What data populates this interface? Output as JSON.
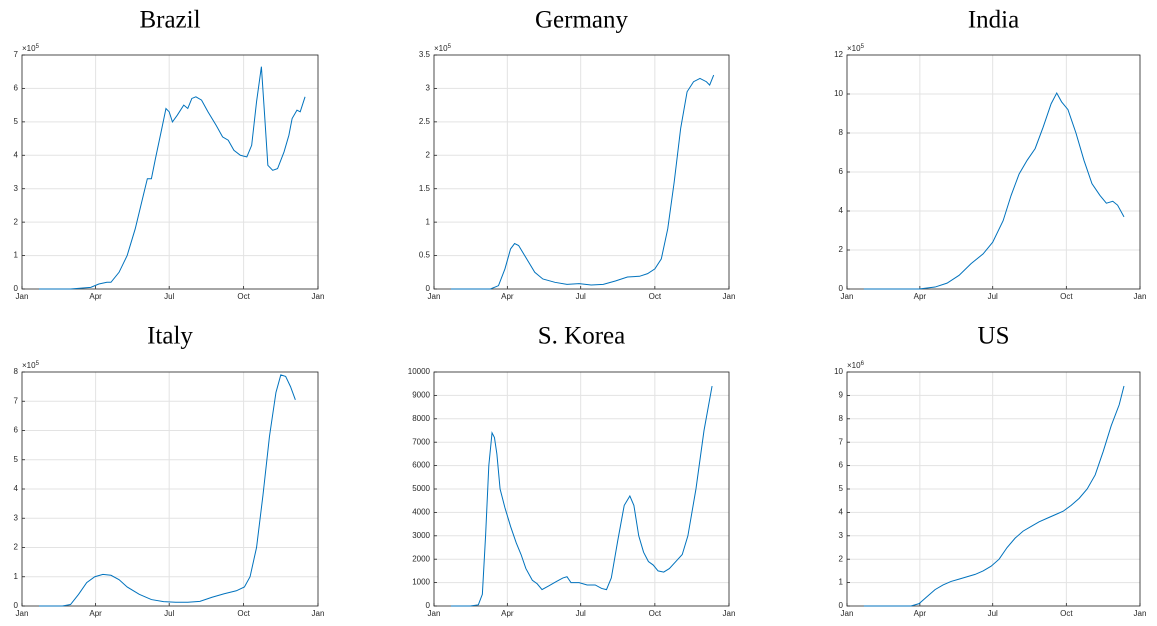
{
  "chart_data": [
    {
      "type": "line",
      "title": "Brazil",
      "color": "#0072bd",
      "grid": true,
      "y_multiplier": {
        "base": "×10",
        "exponent": "5"
      },
      "xlim": [
        0,
        366
      ],
      "xticks": [
        {
          "value": 0,
          "label": "Jan"
        },
        {
          "value": 91,
          "label": "Apr"
        },
        {
          "value": 182,
          "label": "Jul"
        },
        {
          "value": 274,
          "label": "Oct"
        },
        {
          "value": 366,
          "label": "Jan"
        }
      ],
      "ylim": [
        0,
        7
      ],
      "yticks": [
        0,
        1,
        2,
        3,
        4,
        5,
        6,
        7
      ],
      "x": [
        21,
        60,
        85,
        95,
        105,
        110,
        120,
        130,
        140,
        150,
        155,
        160,
        165,
        172,
        178,
        182,
        186,
        192,
        200,
        205,
        210,
        215,
        222,
        230,
        240,
        248,
        255,
        262,
        270,
        278,
        284,
        290,
        296,
        300,
        304,
        310,
        316,
        324,
        330,
        334,
        340,
        344,
        350
      ],
      "values": [
        0,
        0,
        0.05,
        0.15,
        0.2,
        0.2,
        0.5,
        1.0,
        1.8,
        2.8,
        3.3,
        3.3,
        3.9,
        4.7,
        5.4,
        5.3,
        5.0,
        5.2,
        5.5,
        5.4,
        5.7,
        5.75,
        5.65,
        5.3,
        4.9,
        4.55,
        4.45,
        4.15,
        4.0,
        3.95,
        4.3,
        5.6,
        6.65,
        5.2,
        3.7,
        3.55,
        3.6,
        4.1,
        4.6,
        5.1,
        5.35,
        5.3,
        5.75
      ]
    },
    {
      "type": "line",
      "title": "Germany",
      "color": "#0072bd",
      "grid": true,
      "y_multiplier": {
        "base": "×10",
        "exponent": "5"
      },
      "xlim": [
        0,
        366
      ],
      "xticks": [
        {
          "value": 0,
          "label": "Jan"
        },
        {
          "value": 91,
          "label": "Apr"
        },
        {
          "value": 182,
          "label": "Jul"
        },
        {
          "value": 274,
          "label": "Oct"
        },
        {
          "value": 366,
          "label": "Jan"
        }
      ],
      "ylim": [
        0,
        3.5
      ],
      "yticks": [
        0,
        0.5,
        1,
        1.5,
        2,
        2.5,
        3,
        3.5
      ],
      "x": [
        21,
        70,
        80,
        88,
        95,
        100,
        105,
        115,
        125,
        135,
        150,
        165,
        180,
        195,
        210,
        225,
        240,
        255,
        265,
        274,
        282,
        290,
        298,
        306,
        314,
        322,
        330,
        338,
        342,
        347
      ],
      "values": [
        0,
        0,
        0.05,
        0.3,
        0.6,
        0.68,
        0.65,
        0.45,
        0.25,
        0.15,
        0.1,
        0.07,
        0.08,
        0.06,
        0.07,
        0.12,
        0.18,
        0.19,
        0.23,
        0.3,
        0.45,
        0.9,
        1.6,
        2.4,
        2.95,
        3.1,
        3.15,
        3.1,
        3.05,
        3.2
      ]
    },
    {
      "type": "line",
      "title": "India",
      "color": "#0072bd",
      "grid": true,
      "y_multiplier": {
        "base": "×10",
        "exponent": "5"
      },
      "xlim": [
        0,
        366
      ],
      "xticks": [
        {
          "value": 0,
          "label": "Jan"
        },
        {
          "value": 91,
          "label": "Apr"
        },
        {
          "value": 182,
          "label": "Jul"
        },
        {
          "value": 274,
          "label": "Oct"
        },
        {
          "value": 366,
          "label": "Jan"
        }
      ],
      "ylim": [
        0,
        12
      ],
      "yticks": [
        0,
        2,
        4,
        6,
        8,
        10,
        12
      ],
      "x": [
        21,
        90,
        110,
        125,
        140,
        155,
        170,
        182,
        195,
        205,
        215,
        225,
        235,
        245,
        255,
        262,
        268,
        276,
        286,
        296,
        306,
        316,
        324,
        332,
        338,
        346
      ],
      "values": [
        0,
        0,
        0.1,
        0.3,
        0.7,
        1.3,
        1.8,
        2.4,
        3.5,
        4.8,
        5.9,
        6.6,
        7.2,
        8.3,
        9.5,
        10.05,
        9.6,
        9.2,
        8.0,
        6.6,
        5.4,
        4.8,
        4.4,
        4.5,
        4.3,
        3.7
      ]
    },
    {
      "type": "line",
      "title": "Italy",
      "color": "#0072bd",
      "grid": true,
      "y_multiplier": {
        "base": "×10",
        "exponent": "5"
      },
      "xlim": [
        0,
        366
      ],
      "xticks": [
        {
          "value": 0,
          "label": "Jan"
        },
        {
          "value": 91,
          "label": "Apr"
        },
        {
          "value": 182,
          "label": "Jul"
        },
        {
          "value": 274,
          "label": "Oct"
        },
        {
          "value": 366,
          "label": "Jan"
        }
      ],
      "ylim": [
        0,
        8
      ],
      "yticks": [
        0,
        1,
        2,
        3,
        4,
        5,
        6,
        7,
        8
      ],
      "x": [
        21,
        50,
        60,
        70,
        80,
        90,
        100,
        110,
        120,
        130,
        145,
        160,
        175,
        190,
        205,
        220,
        235,
        250,
        265,
        275,
        282,
        290,
        298,
        306,
        314,
        320,
        326,
        332,
        338
      ],
      "values": [
        0,
        0,
        0.05,
        0.4,
        0.8,
        1.0,
        1.08,
        1.05,
        0.9,
        0.65,
        0.4,
        0.22,
        0.15,
        0.13,
        0.13,
        0.16,
        0.3,
        0.42,
        0.52,
        0.65,
        1.0,
        2.0,
        3.8,
        5.8,
        7.3,
        7.9,
        7.85,
        7.5,
        7.05
      ]
    },
    {
      "type": "line",
      "title": "S. Korea",
      "color": "#0072bd",
      "grid": true,
      "xlim": [
        0,
        366
      ],
      "xticks": [
        {
          "value": 0,
          "label": "Jan"
        },
        {
          "value": 91,
          "label": "Apr"
        },
        {
          "value": 182,
          "label": "Jul"
        },
        {
          "value": 274,
          "label": "Oct"
        },
        {
          "value": 366,
          "label": "Jan"
        }
      ],
      "ylim": [
        0,
        10000
      ],
      "yticks": [
        0,
        1000,
        2000,
        3000,
        4000,
        5000,
        6000,
        7000,
        8000,
        9000,
        10000
      ],
      "x": [
        21,
        45,
        55,
        60,
        64,
        68,
        72,
        75,
        78,
        82,
        88,
        95,
        102,
        108,
        114,
        122,
        128,
        134,
        142,
        152,
        160,
        165,
        170,
        180,
        190,
        200,
        208,
        214,
        220,
        228,
        236,
        243,
        248,
        254,
        260,
        266,
        272,
        278,
        285,
        292,
        300,
        308,
        315,
        325,
        335,
        345
      ],
      "values": [
        0,
        0,
        50,
        500,
        3000,
        6000,
        7400,
        7200,
        6500,
        5000,
        4200,
        3400,
        2700,
        2200,
        1600,
        1100,
        950,
        700,
        850,
        1050,
        1200,
        1250,
        1000,
        1000,
        900,
        900,
        750,
        700,
        1200,
        2800,
        4300,
        4700,
        4300,
        3000,
        2300,
        1900,
        1750,
        1500,
        1450,
        1600,
        1900,
        2200,
        3000,
        5000,
        7500,
        9400
      ]
    },
    {
      "type": "line",
      "title": "US",
      "color": "#0072bd",
      "grid": true,
      "y_multiplier": {
        "base": "×10",
        "exponent": "6"
      },
      "xlim": [
        0,
        366
      ],
      "xticks": [
        {
          "value": 0,
          "label": "Jan"
        },
        {
          "value": 91,
          "label": "Apr"
        },
        {
          "value": 182,
          "label": "Jul"
        },
        {
          "value": 274,
          "label": "Oct"
        },
        {
          "value": 366,
          "label": "Jan"
        }
      ],
      "ylim": [
        0,
        10
      ],
      "yticks": [
        0,
        1,
        2,
        3,
        4,
        5,
        6,
        7,
        8,
        9,
        10
      ],
      "x": [
        21,
        80,
        90,
        100,
        110,
        120,
        130,
        140,
        150,
        160,
        170,
        180,
        190,
        200,
        210,
        220,
        230,
        240,
        250,
        260,
        270,
        280,
        290,
        300,
        310,
        320,
        330,
        340,
        346
      ],
      "values": [
        0,
        0,
        0.1,
        0.4,
        0.7,
        0.9,
        1.05,
        1.15,
        1.25,
        1.35,
        1.5,
        1.7,
        2.0,
        2.5,
        2.9,
        3.2,
        3.4,
        3.6,
        3.75,
        3.9,
        4.05,
        4.3,
        4.6,
        5.0,
        5.6,
        6.6,
        7.7,
        8.6,
        9.4
      ]
    }
  ]
}
